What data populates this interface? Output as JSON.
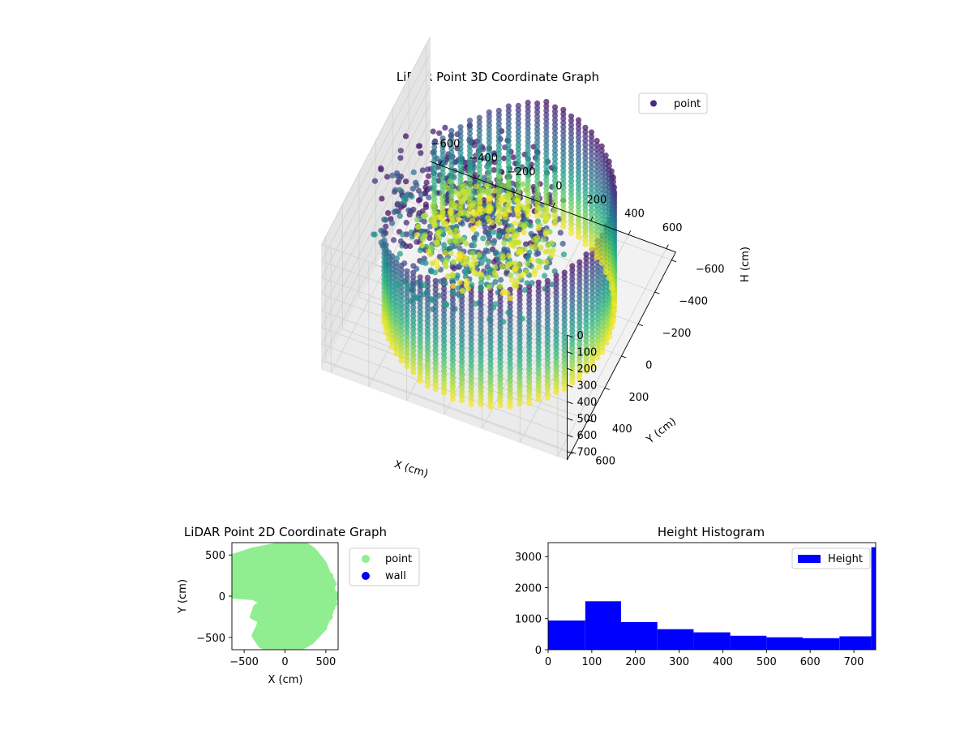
{
  "chart_data": [
    {
      "type": "scatter",
      "title": "LiDAR Point 3D Coordinate Graph",
      "xlabel": "X (cm)",
      "ylabel": "Y (cm)",
      "zlabel": "H (cm)",
      "xlim": [
        -650,
        650
      ],
      "ylim": [
        -650,
        650
      ],
      "zlim": [
        0,
        750
      ],
      "z_inverted": true,
      "x_ticks": [
        "−600",
        "−400",
        "−200",
        "0",
        "200",
        "400",
        "600"
      ],
      "y_ticks": [
        "−600",
        "−400",
        "−200",
        "0",
        "200",
        "400",
        "600"
      ],
      "z_ticks": [
        "0",
        "100",
        "200",
        "300",
        "400",
        "500",
        "600",
        "700"
      ],
      "grid": true,
      "legend": {
        "position": "upper-right",
        "entries": [
          {
            "label": "point",
            "color": "#472c7a"
          }
        ]
      },
      "colormap": "viridis",
      "colormap_by": "H (cm)",
      "description_of_points": "cylindrical wall of radius ~560 cm from 0 to 750 cm height on the +X half, with a scattered cluster near the upper left",
      "series": [
        {
          "name": "point",
          "values": []
        }
      ]
    },
    {
      "type": "scatter",
      "title": "LiDAR Point 2D Coordinate Graph",
      "xlabel": "X (cm)",
      "ylabel": "Y (cm)",
      "xlim": [
        -650,
        650
      ],
      "ylim": [
        -650,
        650
      ],
      "x_ticks": [
        "−500",
        "0",
        "500"
      ],
      "y_ticks": [
        "500",
        "0",
        "−500"
      ],
      "legend": {
        "position": "outside-right",
        "entries": [
          {
            "label": "point",
            "color": "#90ee90"
          },
          {
            "label": "wall",
            "color": "#0000ff"
          }
        ]
      },
      "series": [
        {
          "name": "point",
          "values": []
        },
        {
          "name": "wall",
          "values": []
        }
      ]
    },
    {
      "type": "bar",
      "title": "Height Histogram",
      "xlim": [
        0,
        750
      ],
      "ylim": [
        0,
        3450
      ],
      "x_ticks": [
        "0",
        "100",
        "200",
        "300",
        "400",
        "500",
        "600",
        "700"
      ],
      "y_ticks": [
        "0",
        "1000",
        "2000",
        "3000"
      ],
      "legend": {
        "position": "upper-right",
        "entries": [
          {
            "label": "Height",
            "color": "#0000ff"
          }
        ]
      },
      "color": "#0000ff",
      "bins": [
        {
          "x0": 0,
          "x1": 85,
          "count": 940
        },
        {
          "x0": 85,
          "x1": 167,
          "count": 1560
        },
        {
          "x0": 167,
          "x1": 250,
          "count": 890
        },
        {
          "x0": 250,
          "x1": 333,
          "count": 660
        },
        {
          "x0": 333,
          "x1": 417,
          "count": 560
        },
        {
          "x0": 417,
          "x1": 500,
          "count": 450
        },
        {
          "x0": 500,
          "x1": 583,
          "count": 400
        },
        {
          "x0": 583,
          "x1": 667,
          "count": 370
        },
        {
          "x0": 667,
          "x1": 740,
          "count": 430
        },
        {
          "x0": 740,
          "x1": 750,
          "count": 3300
        }
      ]
    }
  ]
}
